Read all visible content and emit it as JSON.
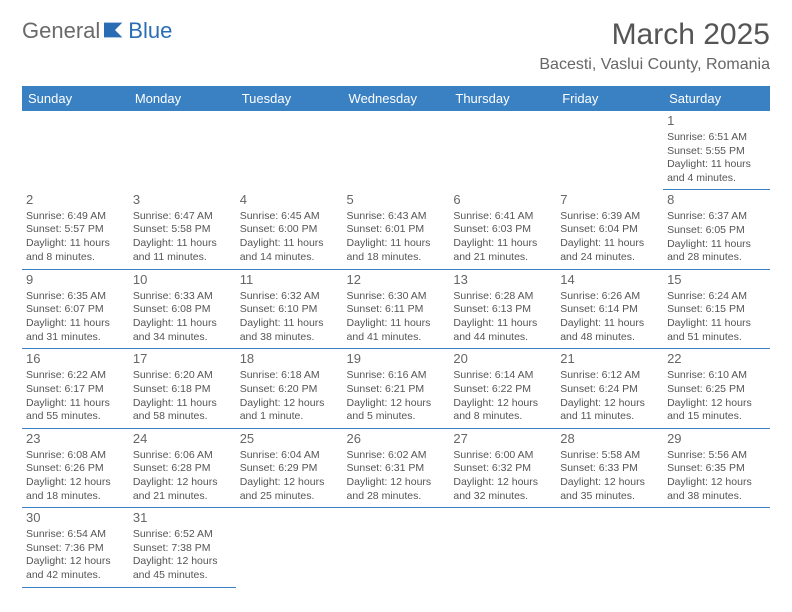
{
  "logo": {
    "text1": "General",
    "text2": "Blue"
  },
  "title": "March 2025",
  "location": "Bacesti, Vaslui County, Romania",
  "colors": {
    "header_bg": "#3a81c4",
    "header_fg": "#ffffff",
    "border": "#3a81c4",
    "text": "#555555"
  },
  "weekdays": [
    "Sunday",
    "Monday",
    "Tuesday",
    "Wednesday",
    "Thursday",
    "Friday",
    "Saturday"
  ],
  "weeks": [
    [
      null,
      null,
      null,
      null,
      null,
      null,
      {
        "n": "1",
        "sr": "Sunrise: 6:51 AM",
        "ss": "Sunset: 5:55 PM",
        "dl1": "Daylight: 11 hours",
        "dl2": "and 4 minutes."
      }
    ],
    [
      {
        "n": "2",
        "sr": "Sunrise: 6:49 AM",
        "ss": "Sunset: 5:57 PM",
        "dl1": "Daylight: 11 hours",
        "dl2": "and 8 minutes."
      },
      {
        "n": "3",
        "sr": "Sunrise: 6:47 AM",
        "ss": "Sunset: 5:58 PM",
        "dl1": "Daylight: 11 hours",
        "dl2": "and 11 minutes."
      },
      {
        "n": "4",
        "sr": "Sunrise: 6:45 AM",
        "ss": "Sunset: 6:00 PM",
        "dl1": "Daylight: 11 hours",
        "dl2": "and 14 minutes."
      },
      {
        "n": "5",
        "sr": "Sunrise: 6:43 AM",
        "ss": "Sunset: 6:01 PM",
        "dl1": "Daylight: 11 hours",
        "dl2": "and 18 minutes."
      },
      {
        "n": "6",
        "sr": "Sunrise: 6:41 AM",
        "ss": "Sunset: 6:03 PM",
        "dl1": "Daylight: 11 hours",
        "dl2": "and 21 minutes."
      },
      {
        "n": "7",
        "sr": "Sunrise: 6:39 AM",
        "ss": "Sunset: 6:04 PM",
        "dl1": "Daylight: 11 hours",
        "dl2": "and 24 minutes."
      },
      {
        "n": "8",
        "sr": "Sunrise: 6:37 AM",
        "ss": "Sunset: 6:05 PM",
        "dl1": "Daylight: 11 hours",
        "dl2": "and 28 minutes."
      }
    ],
    [
      {
        "n": "9",
        "sr": "Sunrise: 6:35 AM",
        "ss": "Sunset: 6:07 PM",
        "dl1": "Daylight: 11 hours",
        "dl2": "and 31 minutes."
      },
      {
        "n": "10",
        "sr": "Sunrise: 6:33 AM",
        "ss": "Sunset: 6:08 PM",
        "dl1": "Daylight: 11 hours",
        "dl2": "and 34 minutes."
      },
      {
        "n": "11",
        "sr": "Sunrise: 6:32 AM",
        "ss": "Sunset: 6:10 PM",
        "dl1": "Daylight: 11 hours",
        "dl2": "and 38 minutes."
      },
      {
        "n": "12",
        "sr": "Sunrise: 6:30 AM",
        "ss": "Sunset: 6:11 PM",
        "dl1": "Daylight: 11 hours",
        "dl2": "and 41 minutes."
      },
      {
        "n": "13",
        "sr": "Sunrise: 6:28 AM",
        "ss": "Sunset: 6:13 PM",
        "dl1": "Daylight: 11 hours",
        "dl2": "and 44 minutes."
      },
      {
        "n": "14",
        "sr": "Sunrise: 6:26 AM",
        "ss": "Sunset: 6:14 PM",
        "dl1": "Daylight: 11 hours",
        "dl2": "and 48 minutes."
      },
      {
        "n": "15",
        "sr": "Sunrise: 6:24 AM",
        "ss": "Sunset: 6:15 PM",
        "dl1": "Daylight: 11 hours",
        "dl2": "and 51 minutes."
      }
    ],
    [
      {
        "n": "16",
        "sr": "Sunrise: 6:22 AM",
        "ss": "Sunset: 6:17 PM",
        "dl1": "Daylight: 11 hours",
        "dl2": "and 55 minutes."
      },
      {
        "n": "17",
        "sr": "Sunrise: 6:20 AM",
        "ss": "Sunset: 6:18 PM",
        "dl1": "Daylight: 11 hours",
        "dl2": "and 58 minutes."
      },
      {
        "n": "18",
        "sr": "Sunrise: 6:18 AM",
        "ss": "Sunset: 6:20 PM",
        "dl1": "Daylight: 12 hours",
        "dl2": "and 1 minute."
      },
      {
        "n": "19",
        "sr": "Sunrise: 6:16 AM",
        "ss": "Sunset: 6:21 PM",
        "dl1": "Daylight: 12 hours",
        "dl2": "and 5 minutes."
      },
      {
        "n": "20",
        "sr": "Sunrise: 6:14 AM",
        "ss": "Sunset: 6:22 PM",
        "dl1": "Daylight: 12 hours",
        "dl2": "and 8 minutes."
      },
      {
        "n": "21",
        "sr": "Sunrise: 6:12 AM",
        "ss": "Sunset: 6:24 PM",
        "dl1": "Daylight: 12 hours",
        "dl2": "and 11 minutes."
      },
      {
        "n": "22",
        "sr": "Sunrise: 6:10 AM",
        "ss": "Sunset: 6:25 PM",
        "dl1": "Daylight: 12 hours",
        "dl2": "and 15 minutes."
      }
    ],
    [
      {
        "n": "23",
        "sr": "Sunrise: 6:08 AM",
        "ss": "Sunset: 6:26 PM",
        "dl1": "Daylight: 12 hours",
        "dl2": "and 18 minutes."
      },
      {
        "n": "24",
        "sr": "Sunrise: 6:06 AM",
        "ss": "Sunset: 6:28 PM",
        "dl1": "Daylight: 12 hours",
        "dl2": "and 21 minutes."
      },
      {
        "n": "25",
        "sr": "Sunrise: 6:04 AM",
        "ss": "Sunset: 6:29 PM",
        "dl1": "Daylight: 12 hours",
        "dl2": "and 25 minutes."
      },
      {
        "n": "26",
        "sr": "Sunrise: 6:02 AM",
        "ss": "Sunset: 6:31 PM",
        "dl1": "Daylight: 12 hours",
        "dl2": "and 28 minutes."
      },
      {
        "n": "27",
        "sr": "Sunrise: 6:00 AM",
        "ss": "Sunset: 6:32 PM",
        "dl1": "Daylight: 12 hours",
        "dl2": "and 32 minutes."
      },
      {
        "n": "28",
        "sr": "Sunrise: 5:58 AM",
        "ss": "Sunset: 6:33 PM",
        "dl1": "Daylight: 12 hours",
        "dl2": "and 35 minutes."
      },
      {
        "n": "29",
        "sr": "Sunrise: 5:56 AM",
        "ss": "Sunset: 6:35 PM",
        "dl1": "Daylight: 12 hours",
        "dl2": "and 38 minutes."
      }
    ],
    [
      {
        "n": "30",
        "sr": "Sunrise: 6:54 AM",
        "ss": "Sunset: 7:36 PM",
        "dl1": "Daylight: 12 hours",
        "dl2": "and 42 minutes."
      },
      {
        "n": "31",
        "sr": "Sunrise: 6:52 AM",
        "ss": "Sunset: 7:38 PM",
        "dl1": "Daylight: 12 hours",
        "dl2": "and 45 minutes."
      },
      null,
      null,
      null,
      null,
      null
    ]
  ]
}
